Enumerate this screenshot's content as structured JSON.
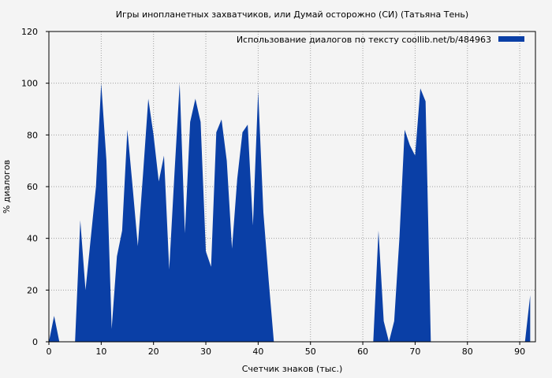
{
  "chart_data": {
    "type": "area",
    "title": "Игры инопланетных захватчиков, или Думай осторожно (СИ) (Татьяна Тень)",
    "xlabel": "Счетчик знаков (тыс.)",
    "ylabel": "% диалогов",
    "xlim": [
      0,
      93
    ],
    "ylim": [
      0,
      120
    ],
    "xticks": [
      0,
      10,
      20,
      30,
      40,
      50,
      60,
      70,
      80,
      90
    ],
    "yticks": [
      0,
      20,
      40,
      60,
      80,
      100,
      120
    ],
    "grid": true,
    "legend_position": "top-right",
    "colors": {
      "series": "#0a3fa6",
      "background": "#f4f4f4",
      "grid": "#a0a0a0"
    },
    "series": [
      {
        "name": "Использование диалогов по тексту  coollib.net/b/484963",
        "x": [
          0,
          1,
          2,
          3,
          4,
          5,
          6,
          7,
          8,
          9,
          10,
          11,
          12,
          13,
          14,
          15,
          16,
          17,
          18,
          19,
          20,
          21,
          22,
          23,
          24,
          25,
          26,
          27,
          28,
          29,
          30,
          31,
          32,
          33,
          34,
          35,
          36,
          37,
          38,
          39,
          40,
          41,
          42,
          43,
          44,
          45,
          46,
          47,
          48,
          49,
          50,
          51,
          52,
          53,
          54,
          55,
          56,
          57,
          58,
          59,
          60,
          61,
          62,
          63,
          64,
          65,
          66,
          67,
          68,
          69,
          70,
          71,
          72,
          73,
          74,
          75,
          76,
          77,
          78,
          79,
          80,
          81,
          82,
          83,
          84,
          85,
          86,
          87,
          88,
          89,
          90,
          91,
          92
        ],
        "values": [
          0,
          10,
          0,
          0,
          0,
          0,
          47,
          20,
          40,
          60,
          100,
          70,
          5,
          33,
          43,
          82,
          60,
          37,
          65,
          94,
          80,
          62,
          72,
          28,
          65,
          100,
          42,
          85,
          94,
          85,
          35,
          29,
          81,
          86,
          70,
          36,
          63,
          81,
          84,
          45,
          97,
          50,
          24,
          0,
          0,
          0,
          0,
          0,
          0,
          0,
          0,
          0,
          0,
          0,
          0,
          0,
          0,
          0,
          0,
          0,
          0,
          0,
          0,
          43,
          8,
          0,
          8,
          40,
          82,
          76,
          72,
          98,
          93,
          0,
          0,
          0,
          0,
          0,
          0,
          0,
          0,
          0,
          0,
          0,
          0,
          0,
          0,
          0,
          0,
          0,
          0,
          0,
          18
        ]
      }
    ]
  }
}
